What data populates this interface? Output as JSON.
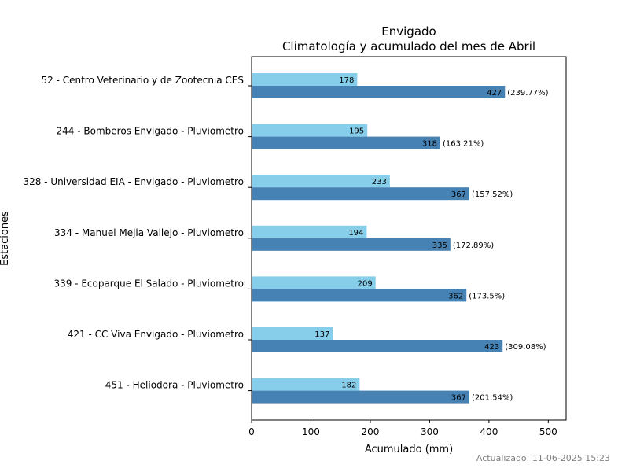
{
  "chart_data": {
    "type": "bar",
    "orientation": "horizontal",
    "title": "Envigado",
    "subtitle": "Climatología y acumulado del mes de Abril",
    "xlabel": "Acumulado (mm)",
    "ylabel": "Estaciones",
    "xlim": [
      0,
      530
    ],
    "xticks": [
      0,
      100,
      200,
      300,
      400,
      500
    ],
    "grid": false,
    "categories": [
      "52 - Centro Veterinario y de Zootecnia CES",
      "244 - Bomberos Envigado - Pluviometro",
      "328 - Universidad EIA - Envigado - Pluviometro",
      "334 - Manuel Mejia Vallejo - Pluviometro",
      "339 - Ecoparque El Salado - Pluviometro",
      "421 - CC Viva Envigado - Pluviometro",
      "451 - Heliodora - Pluviometro"
    ],
    "series": [
      {
        "values": [
          178,
          195,
          233,
          194,
          209,
          137,
          182
        ],
        "color": "#87CEEB"
      },
      {
        "values": [
          427,
          318,
          367,
          335,
          362,
          423,
          367
        ],
        "color": "#4682B4",
        "percent_labels": [
          "(239.77%)",
          "(163.21%)",
          "(157.52%)",
          "(172.89%)",
          "(173.5%)",
          "(309.08%)",
          "(201.54%)"
        ]
      }
    ]
  },
  "footer": "Actualizado: 11-06-2025 15:23"
}
